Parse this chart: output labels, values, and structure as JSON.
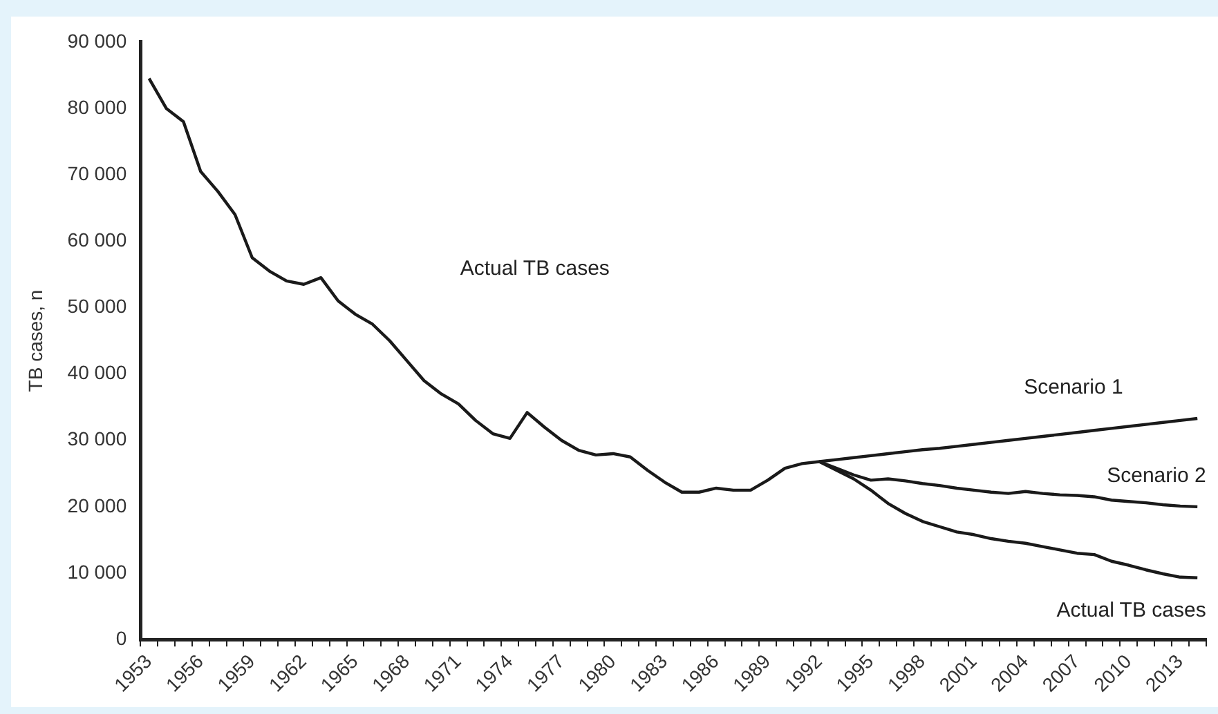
{
  "chart_data": {
    "type": "line",
    "ylabel": "TB cases, n",
    "categories": [
      "1953",
      null,
      null,
      "1956",
      null,
      null,
      "1959",
      null,
      null,
      "1962",
      null,
      null,
      "1965",
      null,
      null,
      "1968",
      null,
      null,
      "1971",
      null,
      null,
      "1974",
      null,
      null,
      "1977",
      null,
      null,
      "1980",
      null,
      null,
      "1983",
      null,
      null,
      "1986",
      null,
      null,
      "1989",
      null,
      null,
      "1992",
      null,
      null,
      "1995",
      null,
      null,
      "1998",
      null,
      null,
      "2001",
      null,
      null,
      "2004",
      null,
      null,
      "2007",
      null,
      null,
      "2010",
      null,
      null,
      "2013",
      null
    ],
    "series": [
      {
        "name": "Actual TB cases",
        "color": "#1a1a1a",
        "values": [
          84500,
          80000,
          78000,
          70500,
          67500,
          64000,
          57500,
          55500,
          54000,
          53500,
          54500,
          51000,
          49000,
          47500,
          45000,
          42000,
          39000,
          37000,
          35500,
          33000,
          31000,
          30300,
          34200,
          32000,
          30000,
          28500,
          27800,
          28000,
          27500,
          25500,
          23700,
          22200,
          22200,
          22800,
          22500,
          22500,
          24000,
          25800,
          26500,
          26800,
          25500,
          24200,
          22500,
          20500,
          19000,
          17800,
          17000,
          16200,
          15800,
          15200,
          14800,
          14500,
          14000,
          13500,
          13000,
          12800,
          11800,
          11200,
          10500,
          9900,
          9400,
          9300
        ]
      },
      {
        "name": "Scenario 1",
        "color": "#1a1a1a",
        "values": [
          null,
          null,
          null,
          null,
          null,
          null,
          null,
          null,
          null,
          null,
          null,
          null,
          null,
          null,
          null,
          null,
          null,
          null,
          null,
          null,
          null,
          null,
          null,
          null,
          null,
          null,
          null,
          null,
          null,
          null,
          null,
          null,
          null,
          null,
          null,
          null,
          null,
          null,
          null,
          26800,
          27100,
          27400,
          27700,
          28000,
          28300,
          28600,
          28800,
          29100,
          29400,
          29700,
          30000,
          30300,
          30600,
          30900,
          31200,
          31500,
          31800,
          32100,
          32400,
          32700,
          33000,
          33300
        ]
      },
      {
        "name": "Scenario 2",
        "color": "#1a1a1a",
        "values": [
          null,
          null,
          null,
          null,
          null,
          null,
          null,
          null,
          null,
          null,
          null,
          null,
          null,
          null,
          null,
          null,
          null,
          null,
          null,
          null,
          null,
          null,
          null,
          null,
          null,
          null,
          null,
          null,
          null,
          null,
          null,
          null,
          null,
          null,
          null,
          null,
          null,
          null,
          null,
          26800,
          25800,
          24800,
          24000,
          24200,
          23900,
          23500,
          23200,
          22800,
          22500,
          22200,
          22000,
          22300,
          22000,
          21800,
          21700,
          21500,
          21000,
          20800,
          20600,
          20300,
          20100,
          20000
        ]
      }
    ],
    "ylim": [
      0,
      90000
    ],
    "yticks": [
      0,
      {
        "value": 10000,
        "label": "10 000"
      },
      {
        "value": 20000,
        "label": "20 000"
      },
      {
        "value": 30000,
        "label": "30 000"
      },
      {
        "value": 40000,
        "label": "40 000"
      },
      {
        "value": 50000,
        "label": "50 000"
      },
      {
        "value": 60000,
        "label": "60 000"
      },
      {
        "value": 70000,
        "label": "70 000"
      },
      {
        "value": 80000,
        "label": "80 000"
      },
      {
        "value": 90000,
        "label": "90 000"
      }
    ],
    "annotations": [
      "Actual TB cases"
    ],
    "grid": false,
    "legend": false,
    "marker": "none",
    "line_style": "solid"
  }
}
